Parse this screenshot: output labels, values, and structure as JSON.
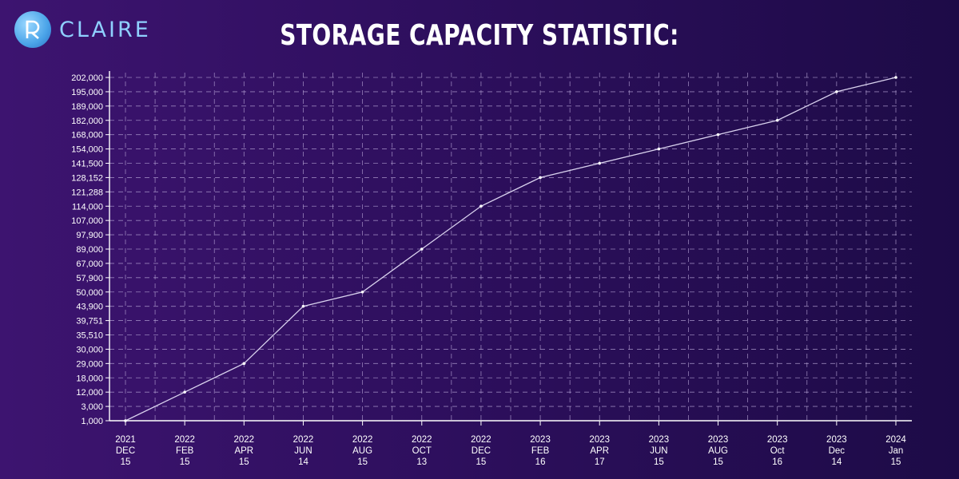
{
  "brand": {
    "name": "CLAIRE",
    "logo_icon": "claire-logo-icon",
    "color": "#8fd0ff"
  },
  "chart_data": {
    "type": "line",
    "title": "STORAGE CAPACITY STATISTIC:",
    "xlabel": "",
    "ylabel": "",
    "grid": true,
    "line_color": "#d9d2ee",
    "x": [
      [
        "2021",
        "DEC",
        "15"
      ],
      [
        "2022",
        "FEB",
        "15"
      ],
      [
        "2022",
        "APR",
        "15"
      ],
      [
        "2022",
        "JUN",
        "14"
      ],
      [
        "2022",
        "AUG",
        "15"
      ],
      [
        "2022",
        "OCT",
        "13"
      ],
      [
        "2022",
        "DEC",
        "15"
      ],
      [
        "2023",
        "FEB",
        "16"
      ],
      [
        "2023",
        "APR",
        "17"
      ],
      [
        "2023",
        "JUN",
        "15"
      ],
      [
        "2023",
        "AUG",
        "15"
      ],
      [
        "2023",
        "Oct",
        "16"
      ],
      [
        "2023",
        "Dec",
        "14"
      ],
      [
        "2024",
        "Jan",
        "15"
      ]
    ],
    "y_ticks": [
      1000,
      3000,
      12000,
      18000,
      29000,
      30000,
      35510,
      39751,
      43900,
      50000,
      57900,
      67000,
      89000,
      97900,
      107000,
      114000,
      121288,
      128152,
      141500,
      154000,
      168000,
      182000,
      189000,
      195000,
      202000
    ],
    "y_tick_labels": [
      "1,000",
      "3,000",
      "12,000",
      "18,000",
      "29,000",
      "30,000",
      "35,510",
      "39,751",
      "43,900",
      "50,000",
      "57,900",
      "67,000",
      "89,000",
      "97,900",
      "107,000",
      "114,000",
      "121,288",
      "128,152",
      "141,500",
      "154,000",
      "168,000",
      "182,000",
      "189,000",
      "195,000",
      "202,000"
    ],
    "values": [
      1000,
      12000,
      29000,
      43900,
      50000,
      89000,
      114000,
      128152,
      141500,
      154000,
      168000,
      182000,
      195000,
      202000
    ]
  }
}
